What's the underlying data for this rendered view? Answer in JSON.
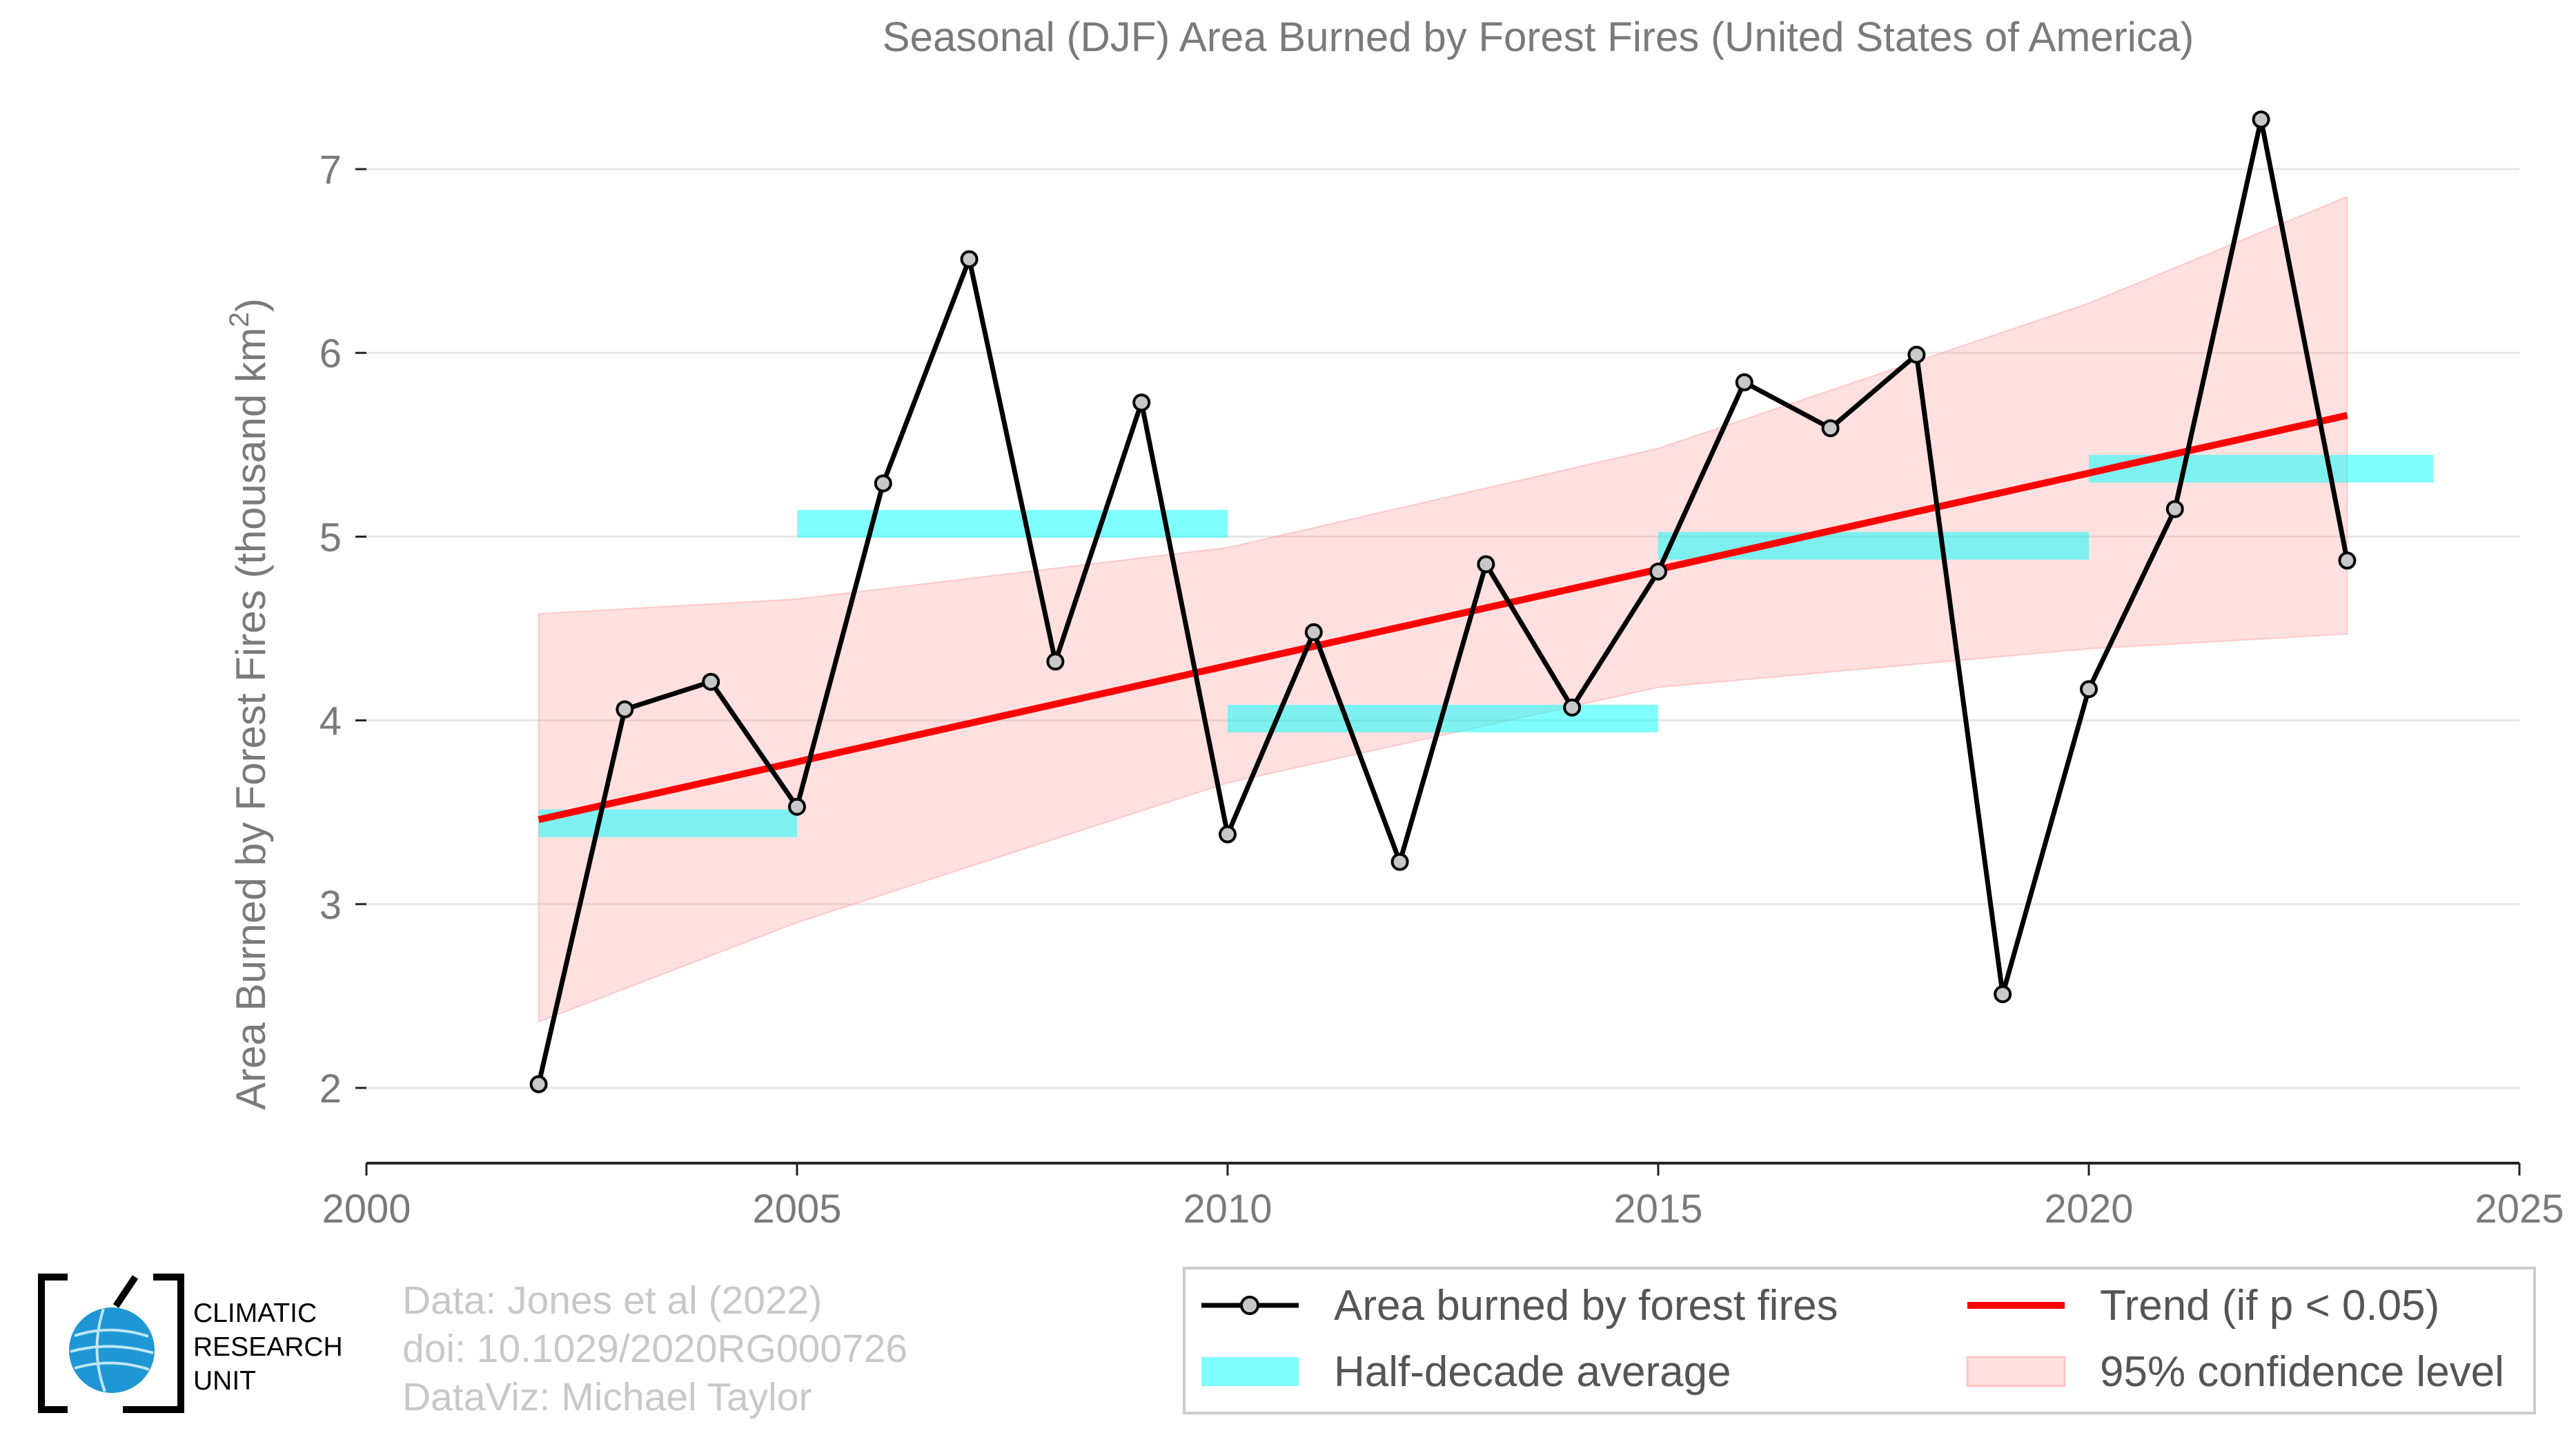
{
  "title": "Seasonal (DJF) Area Burned by Forest Fires (United States of America)",
  "ylabel_main": "Area Burned by Forest Fires (thousand km",
  "ylabel_sup": "2",
  "ylabel_close": ")",
  "credits": [
    "Data: Jones et al (2022)",
    "doi: 10.1029/2020RG000726",
    "DataViz: Michael Taylor"
  ],
  "logo": {
    "lines": [
      "CLIMATIC",
      "RESEARCH",
      "UNIT"
    ],
    "icon": "globe-icon"
  },
  "legend": {
    "series": "Area burned by forest fires",
    "halfdecade": "Half-decade average",
    "trend": "Trend (if p < 0.05)",
    "confidence": "95% confidence level"
  },
  "colors": {
    "series": "#000000",
    "marker_fill": "#c8c8c8",
    "trend": "#ff0000",
    "halfdecade": "#00ffff",
    "confidence": "#ff9999",
    "grid": "#e6e6e6",
    "axis_text": "#7a7a7a"
  },
  "chart_data": {
    "type": "line",
    "x": [
      2002,
      2003,
      2004,
      2005,
      2006,
      2007,
      2008,
      2009,
      2010,
      2011,
      2012,
      2013,
      2014,
      2015,
      2016,
      2017,
      2018,
      2019,
      2020,
      2021,
      2022,
      2023
    ],
    "series": [
      {
        "name": "Area burned by forest fires",
        "values": [
          2.02,
          4.06,
          4.21,
          3.53,
          5.29,
          6.51,
          4.32,
          5.73,
          3.38,
          4.48,
          3.23,
          4.85,
          4.07,
          4.81,
          5.84,
          5.59,
          5.99,
          2.51,
          4.17,
          5.15,
          7.27,
          4.87
        ]
      }
    ],
    "half_decade_average": [
      {
        "start": 2002,
        "end": 2005,
        "value": 3.44
      },
      {
        "start": 2005,
        "end": 2010,
        "value": 5.07
      },
      {
        "start": 2010,
        "end": 2015,
        "value": 4.01
      },
      {
        "start": 2015,
        "end": 2020,
        "value": 4.95
      },
      {
        "start": 2020,
        "end": 2024,
        "value": 5.37
      }
    ],
    "trend": {
      "x": [
        2002,
        2023
      ],
      "y": [
        3.46,
        5.66
      ]
    },
    "confidence_band": {
      "x": [
        2002,
        2005,
        2010,
        2015,
        2020,
        2023
      ],
      "upper": [
        4.58,
        4.66,
        4.94,
        5.48,
        6.27,
        6.85
      ],
      "lower": [
        2.36,
        2.9,
        3.66,
        4.18,
        4.39,
        4.47
      ]
    },
    "xlim": [
      2000,
      2025
    ],
    "ylim": [
      2,
      7
    ],
    "xticks": [
      2000,
      2005,
      2010,
      2015,
      2020,
      2025
    ],
    "yticks": [
      2,
      3,
      4,
      5,
      6,
      7
    ],
    "grid": true,
    "legend_position": "bottom-right"
  }
}
